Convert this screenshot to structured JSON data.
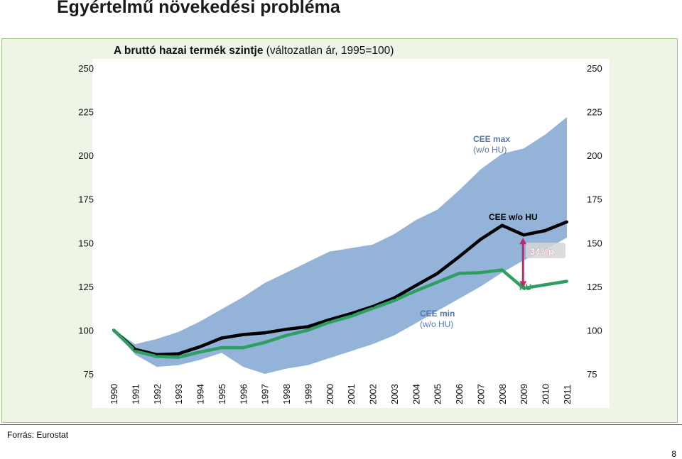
{
  "slide": {
    "title": "Egyértelmű növekedési probléma",
    "source": "Forrás: Eurostat",
    "page_number": "8"
  },
  "colors": {
    "panel_bg": "#eef5e6",
    "panel_border": "#9ac47a",
    "band": "#93b3d9",
    "cee_line": "#000000",
    "hu_line": "#2e9e62",
    "arrow": "#c0286e",
    "label_blue": "#5577aa"
  },
  "chart_data": {
    "type": "line",
    "title_bold": "A bruttó hazai termék szintje",
    "title_rest": " (változatlan ár, 1995=100)",
    "ylim": [
      75,
      250
    ],
    "yticks": [
      "75",
      "100",
      "125",
      "150",
      "175",
      "200",
      "225",
      "250"
    ],
    "y_axis_left": true,
    "y_axis_right": true,
    "grid": false,
    "x": [
      "1990",
      "1991",
      "1992",
      "1993",
      "1994",
      "1995",
      "1996",
      "1997",
      "1998",
      "1999",
      "2000",
      "2001",
      "2002",
      "2003",
      "2004",
      "2005",
      "2006",
      "2007",
      "2008",
      "2009",
      "2010",
      "2011"
    ],
    "band": {
      "upper": [
        100,
        92,
        95,
        99,
        105,
        112,
        119,
        127,
        133,
        139,
        145,
        147,
        149,
        155,
        163,
        169,
        180,
        192,
        201,
        204,
        212,
        222
      ],
      "lower": [
        100,
        86,
        79,
        80,
        83,
        87,
        79,
        75,
        78,
        80,
        84,
        88,
        92,
        97,
        104,
        111,
        118,
        125,
        133,
        140,
        146,
        153
      ]
    },
    "series": [
      {
        "name": "CEE w/o HU",
        "values": [
          100,
          89,
          86,
          86.5,
          90.5,
          95.5,
          97.5,
          98.5,
          100.5,
          102,
          106,
          109.5,
          113.5,
          118.5,
          125.5,
          132.5,
          142,
          152,
          160,
          154.5,
          157,
          162
        ]
      },
      {
        "name": "HU",
        "values": [
          100,
          88,
          85,
          84.5,
          87.5,
          90,
          90,
          93,
          97,
          100,
          104.5,
          108,
          112.5,
          117,
          122.5,
          127.5,
          132.5,
          133,
          134.5,
          124,
          126,
          128
        ]
      }
    ],
    "annotations": {
      "cee_max_line1": "CEE max",
      "cee_max_line2": "(w/o HU)",
      "cee_min_line1": "CEE min",
      "cee_min_line2": "(w/o HU)",
      "cee_label": "CEE w/o HU",
      "hu_label": "HU",
      "gap_label": "34%p"
    }
  }
}
